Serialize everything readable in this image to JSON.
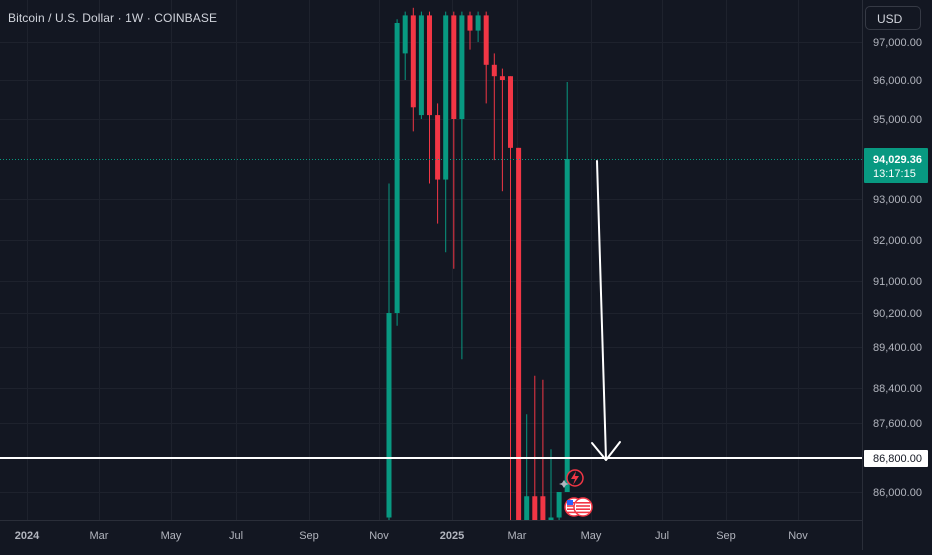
{
  "header": {
    "symbol": "Bitcoin / U.S. Dollar · 1W · COINBASE"
  },
  "currency_button": {
    "label": "USD"
  },
  "price_badge": {
    "price": "94,029.36",
    "countdown": "13:17:15",
    "color": "#089981"
  },
  "level_badge": {
    "price": "86,800.00"
  },
  "colors": {
    "background": "#131722",
    "up": "#089981",
    "down": "#f23645",
    "grid": "#1e222d",
    "axis_text": "#b2b5be",
    "line": "#ffffff"
  },
  "chart_data": {
    "type": "candlestick",
    "title": "Bitcoin / U.S. Dollar · 1W · COINBASE",
    "price_axis": {
      "tick_labels": [
        "97,000.00",
        "96,000.00",
        "95,000.00",
        "93,000.00",
        "92,000.00",
        "91,000.00",
        "90,200.00",
        "89,400.00",
        "88,400.00",
        "87,600.00",
        "86,000.00"
      ],
      "tick_values": [
        97000,
        96000,
        95000,
        93000,
        92000,
        91000,
        90200,
        89400,
        88400,
        87600,
        86000
      ],
      "scale": "non-linear as printed"
    },
    "time_axis": {
      "labels": [
        "2024",
        "Mar",
        "May",
        "Jul",
        "Sep",
        "Nov",
        "2025",
        "Mar",
        "May",
        "Jul",
        "Sep",
        "Nov"
      ],
      "bold_labels": [
        "2024",
        "2025"
      ]
    },
    "last_price": 94029.36,
    "horizontal_level": 86800.0,
    "annotation": "downward arrow from the latest candle close toward the 86,800.00 level",
    "candles": [
      {
        "color": "up",
        "open": 85400,
        "close": 90200,
        "high": 93400,
        "low": 85000
      },
      {
        "color": "up",
        "open": 90200,
        "close": 97500,
        "high": 97600,
        "low": 89900
      },
      {
        "color": "up",
        "open": 96700,
        "close": 97700,
        "high": 97800,
        "low": 96000
      },
      {
        "color": "down",
        "open": 97700,
        "close": 95300,
        "high": 97900,
        "low": 94700
      },
      {
        "color": "up",
        "open": 95100,
        "close": 97700,
        "high": 97800,
        "low": 95000
      },
      {
        "color": "down",
        "open": 97700,
        "close": 95100,
        "high": 97800,
        "low": 93400
      },
      {
        "color": "down",
        "open": 95100,
        "close": 93500,
        "high": 95400,
        "low": 92400
      },
      {
        "color": "up",
        "open": 93500,
        "close": 97700,
        "high": 97800,
        "low": 91700
      },
      {
        "color": "down",
        "open": 97700,
        "close": 95000,
        "high": 97800,
        "low": 91300
      },
      {
        "color": "up",
        "open": 95000,
        "close": 97700,
        "high": 97800,
        "low": 89100
      },
      {
        "color": "down",
        "open": 97700,
        "close": 97300,
        "high": 97800,
        "low": 96800
      },
      {
        "color": "up",
        "open": 97300,
        "close": 97700,
        "high": 97800,
        "low": 97000
      },
      {
        "color": "down",
        "open": 97700,
        "close": 96400,
        "high": 97800,
        "low": 95400
      },
      {
        "color": "down",
        "open": 96400,
        "close": 96100,
        "high": 96700,
        "low": 94000
      },
      {
        "color": "down",
        "open": 96100,
        "close": 96000,
        "high": 96300,
        "low": 93200
      },
      {
        "color": "down",
        "open": 96100,
        "close": 94300,
        "high": 96100,
        "low": 84000
      },
      {
        "color": "down",
        "open": 94300,
        "close": 84000,
        "high": 94300,
        "low": 84000
      },
      {
        "color": "up",
        "open": 84000,
        "close": 85900,
        "high": 87800,
        "low": 84000
      },
      {
        "color": "down",
        "open": 85900,
        "close": 84000,
        "high": 88700,
        "low": 84000
      },
      {
        "color": "down",
        "open": 85900,
        "close": 84000,
        "high": 88600,
        "low": 84000
      },
      {
        "color": "up",
        "open": 84000,
        "close": 85400,
        "high": 87000,
        "low": 84000
      },
      {
        "color": "up",
        "open": 85400,
        "close": 86000,
        "high": 86000,
        "low": 84000
      },
      {
        "color": "up",
        "open": 86000,
        "close": 94029.36,
        "high": 95950,
        "low": 86000
      }
    ]
  }
}
